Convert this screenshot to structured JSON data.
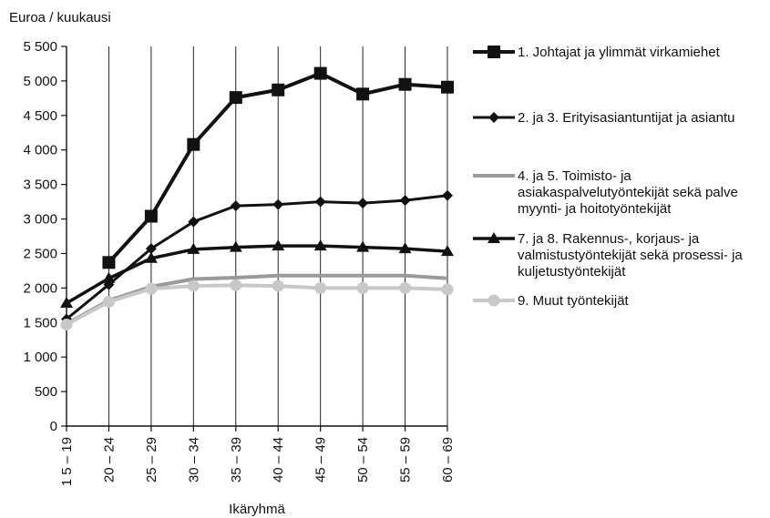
{
  "chart_data": {
    "type": "line",
    "ylabel": "Euroa / kuukausi",
    "xlabel": "Ikäryhmä",
    "categories": [
      "1 5 – 19",
      "20 – 24",
      "25 – 29",
      "30 – 34",
      "35 – 39",
      "40 – 44",
      "45 – 49",
      "50 – 54",
      "55 – 59",
      "60 – 69"
    ],
    "ylim": [
      0,
      5500
    ],
    "yticks": [
      0,
      500,
      1000,
      1500,
      2000,
      2500,
      3000,
      3500,
      4000,
      4500,
      5000,
      5500
    ],
    "ytick_labels": [
      "0",
      "500",
      "1 000",
      "1 500",
      "2 000",
      "2 500",
      "3 000",
      "3 500",
      "4 000",
      "4 500",
      "5 000",
      "5 500"
    ],
    "grid": "vertical",
    "legend_position": "right",
    "series": [
      {
        "name": "1. Johtajat ja ylimmät virkamiehet",
        "legend_lines": [
          "1. Johtajat ja ylimmät virkamiehet"
        ],
        "marker": "square",
        "color": "#111111",
        "values": [
          null,
          2370,
          3040,
          4080,
          4760,
          4870,
          5110,
          4810,
          4950,
          4910
        ]
      },
      {
        "name": "2. ja 3. Erityisasiantuntijat ja asiantu",
        "legend_lines": [
          "2. ja 3. Erityisasiantuntijat ja asiantu"
        ],
        "marker": "diamond",
        "color": "#111111",
        "values": [
          1550,
          2050,
          2570,
          2960,
          3190,
          3210,
          3250,
          3230,
          3270,
          3340
        ]
      },
      {
        "name": "4. ja 5. Toimisto- ja asiakaspalvelutyöntekijät sekä palve myynti- ja hoitotyöntekijät",
        "legend_lines": [
          "4. ja 5. Toimisto- ja",
          "asiakaspalvelutyöntekijät sekä palve",
          "myynti- ja hoitotyöntekijät"
        ],
        "marker": "none",
        "color": "#9a9a9a",
        "values": [
          1480,
          1820,
          2020,
          2130,
          2150,
          2180,
          2180,
          2180,
          2180,
          2140
        ]
      },
      {
        "name": "7. ja 8. Rakennus-, korjaus- ja valmistustyöntekijät sekä prosessi- ja kuljetustyöntekijät",
        "legend_lines": [
          "7. ja 8.  Rakennus-, korjaus- ja",
          "valmistustyöntekijät sekä prosessi- ja",
          "kuljetustyöntekijät"
        ],
        "marker": "triangle",
        "color": "#111111",
        "values": [
          1780,
          2140,
          2430,
          2560,
          2590,
          2610,
          2610,
          2590,
          2570,
          2530
        ]
      },
      {
        "name": "9. Muut työntekijät",
        "legend_lines": [
          "9. Muut työntekijät"
        ],
        "marker": "circle",
        "color": "#c8c8c8",
        "values": [
          1470,
          1800,
          1990,
          2030,
          2040,
          2030,
          2000,
          2000,
          2000,
          1980
        ]
      }
    ]
  }
}
